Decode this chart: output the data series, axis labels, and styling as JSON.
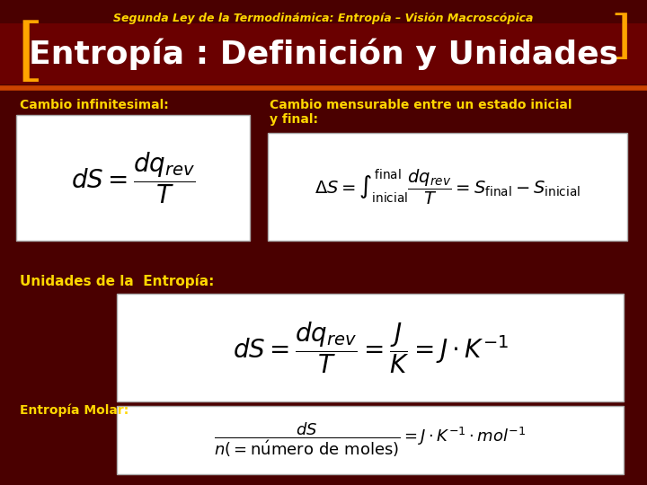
{
  "bg_color": "#4a0000",
  "title_text": "Segunda Ley de la Termodinámica: Entropía – Visión Macroscópica",
  "title_color": "#FFD700",
  "title_fontsize": 9,
  "header_text": "Entropía : Definición y Unidades",
  "header_color": "#FFFFFF",
  "header_fontsize": 26,
  "header_bg": "#6a0000",
  "bracket_color": "#FFA500",
  "orange_line_color": "#CC4400",
  "label1_text": "Cambio infinitesimal:",
  "label1_color": "#FFD700",
  "label1_fontsize": 10,
  "formula1": "$dS = \\dfrac{dq_{rev}}{T}$",
  "formula1_fontsize": 20,
  "label2_text": "Cambio mensurable entre un estado inicial\ny final:",
  "label2_color": "#FFD700",
  "label2_fontsize": 10,
  "formula2": "$\\Delta S = \\int_{\\mathrm{inicial}}^{\\mathrm{final}} \\dfrac{dq_{rev}}{T} = S_{\\mathrm{final}} - S_{\\mathrm{inicial}}$",
  "formula2_fontsize": 14,
  "label3_text": "Unidades de la  Entropía:",
  "label3_color": "#FFD700",
  "label3_fontsize": 11,
  "formula3": "$dS = \\dfrac{dq_{rev}}{T} = \\dfrac{J}{K} = J \\cdot K^{-1}$",
  "formula3_fontsize": 20,
  "label4_text": "Entropía Molar:",
  "label4_color": "#FFD700",
  "label4_fontsize": 10,
  "formula4": "$\\dfrac{dS}{n(= \\mathrm{n\\acute{u}mero\\ de\\ moles})} = J \\cdot K^{-1} \\cdot mol^{-1}$",
  "formula4_fontsize": 13,
  "box_bg": "#FFFFFF",
  "box_edge": "#AAAAAA"
}
